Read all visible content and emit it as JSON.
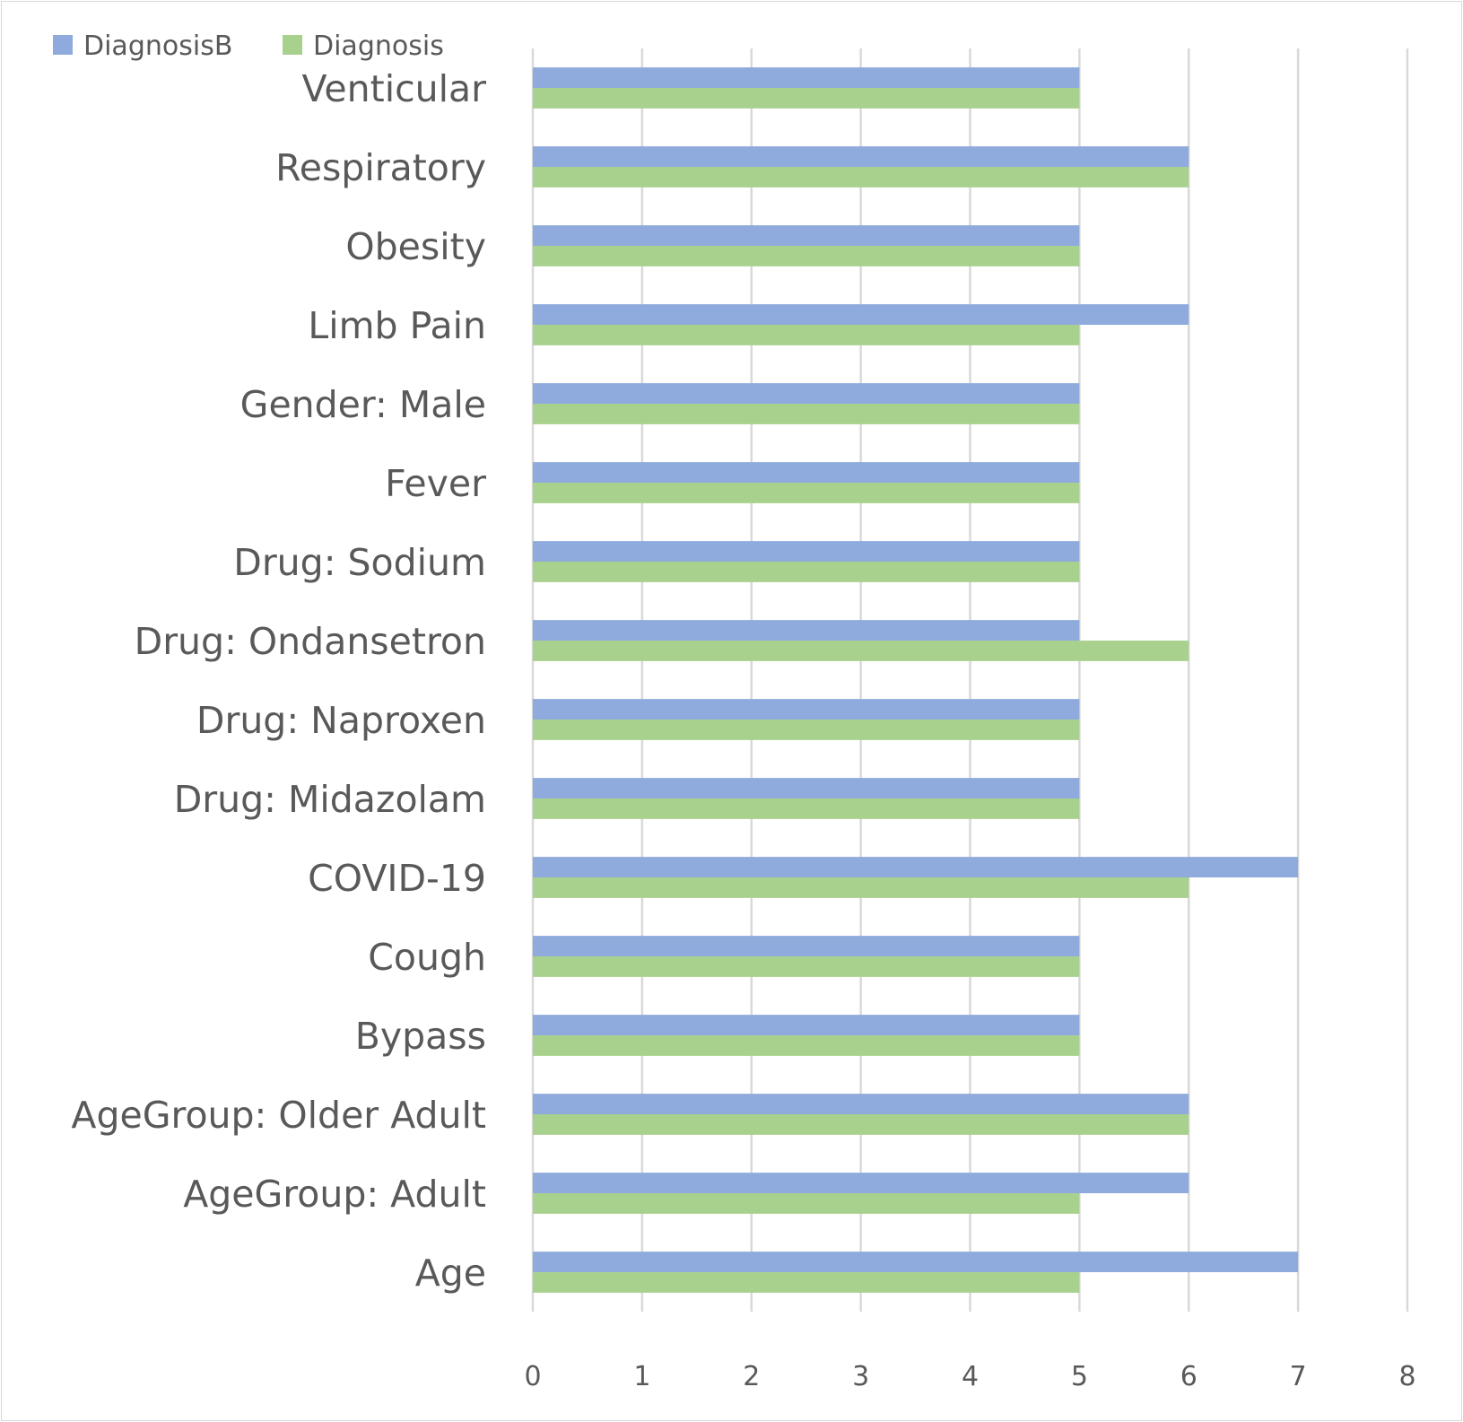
{
  "chart_data": {
    "type": "bar",
    "orientation": "horizontal",
    "title": "",
    "xlabel": "",
    "ylabel": "",
    "xlim": [
      0,
      8
    ],
    "x_ticks": [
      "0",
      "1",
      "2",
      "3",
      "4",
      "5",
      "6",
      "7",
      "8"
    ],
    "grid": true,
    "legend_position": "top-left",
    "categories": [
      "Venticular",
      "Respiratory",
      "Obesity",
      "Limb Pain",
      "Gender: Male",
      "Fever",
      "Drug: Sodium",
      "Drug: Ondansetron",
      "Drug: Naproxen",
      "Drug: Midazolam",
      "COVID-19",
      "Cough",
      "Bypass",
      "AgeGroup: Older Adult",
      "AgeGroup: Adult",
      "Age"
    ],
    "series": [
      {
        "name": "DiagnosisB",
        "color": "#8faadc",
        "values": [
          5,
          6,
          5,
          6,
          5,
          5,
          5,
          5,
          5,
          5,
          7,
          5,
          5,
          6,
          6,
          7
        ]
      },
      {
        "name": "Diagnosis",
        "color": "#a9d18e",
        "values": [
          5,
          6,
          5,
          5,
          5,
          5,
          5,
          6,
          5,
          5,
          6,
          5,
          5,
          6,
          5,
          5
        ]
      }
    ]
  }
}
